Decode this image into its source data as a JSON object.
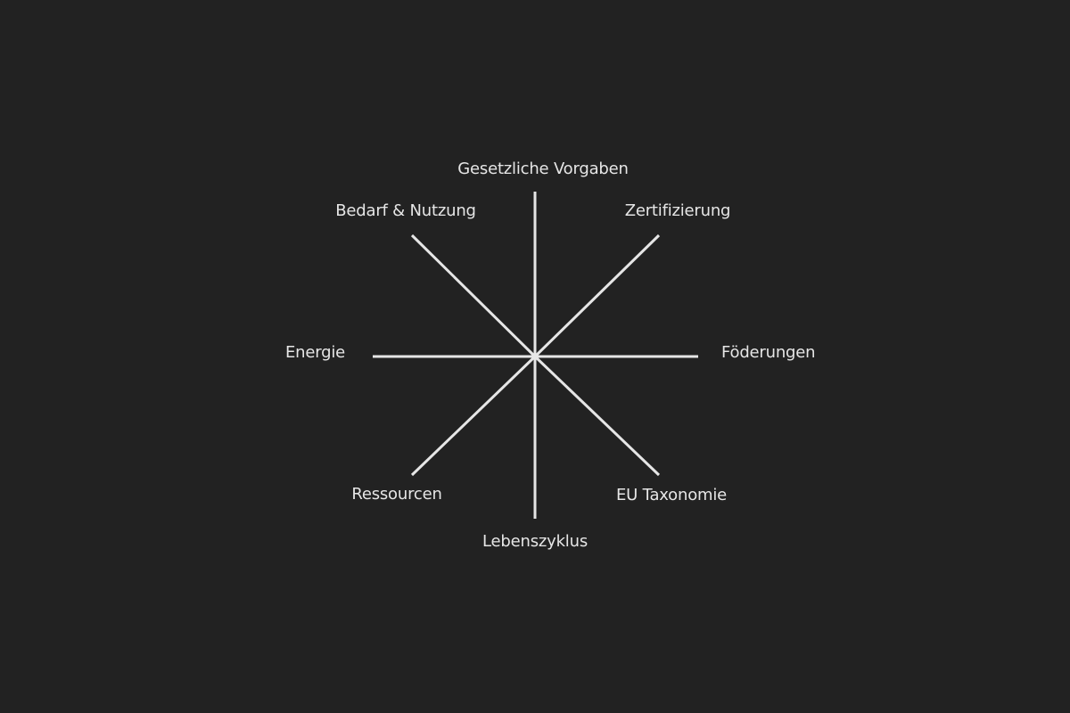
{
  "diagram": {
    "line_color": "#e6e6e6",
    "background_color": "#222222",
    "labels": {
      "top": "Gesetzliche Vorgaben",
      "top_left": "Bedarf & Nutzung",
      "top_right": "Zertifizierung",
      "left": "Energie",
      "right": "Föderungen",
      "bottom_left": "Ressourcen",
      "bottom_right": "EU Taxonomie",
      "bottom": "Lebenszyklus"
    }
  }
}
